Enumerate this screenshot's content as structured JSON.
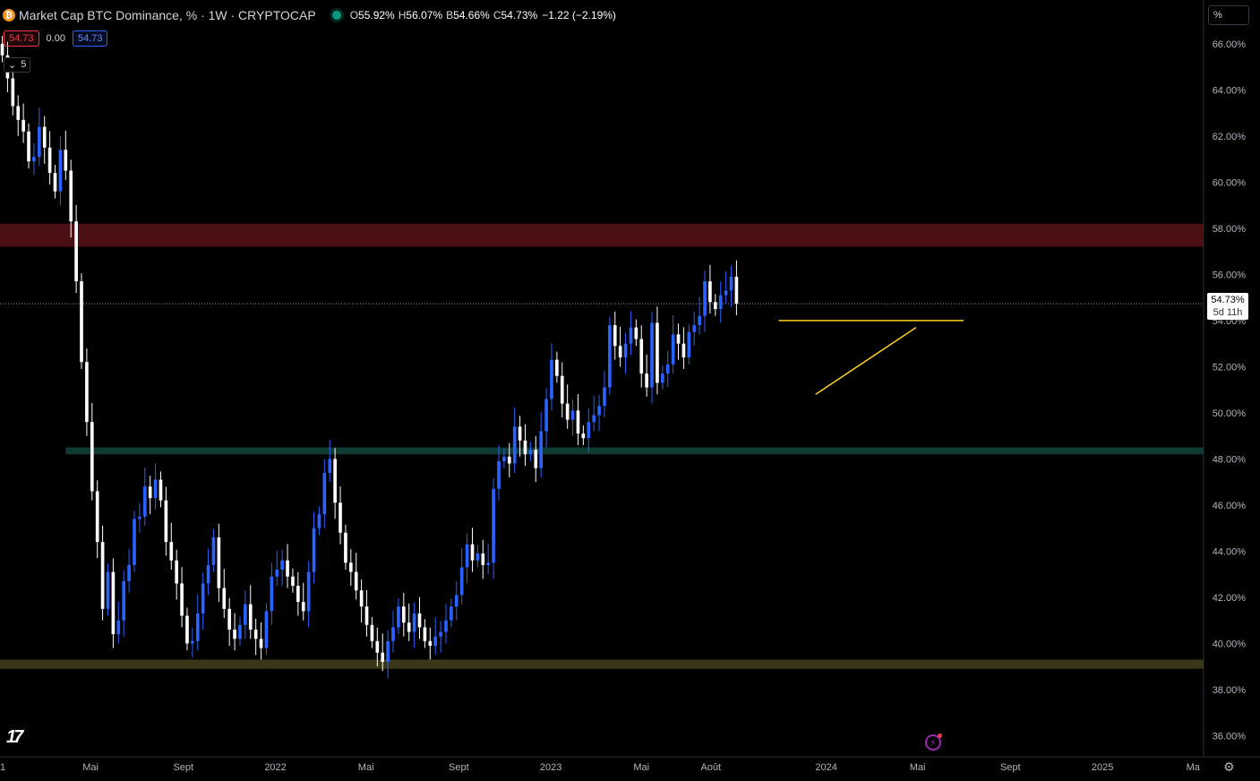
{
  "header": {
    "symbol_icon": "bitcoin-icon",
    "title": "Market Cap BTC Dominance, % · 1W · CRYPTOCAP",
    "ohlc": {
      "o_label": "O",
      "o": "55.92%",
      "h_label": "H",
      "h": "56.07%",
      "l_label": "B",
      "l": "54.66%",
      "c_label": "C",
      "c": "54.73%",
      "change": "−1.22 (−2.19%)"
    }
  },
  "trade": {
    "sell": "54.73",
    "spread": "0.00",
    "buy": "54.73"
  },
  "indicators": {
    "count": "5",
    "toggle_icon": "chevron-down-icon"
  },
  "scale_mode": "%",
  "last_price": {
    "value": "54.73%",
    "countdown": "5d 11h"
  },
  "colors": {
    "up": "#2962ff",
    "down": "#ffffff",
    "background": "#000000",
    "resistance_zone": "#4a1014",
    "support_zone": "#0e3b33",
    "floor_zone": "#3a3618",
    "trendline": "#ffd320"
  },
  "chart_data": {
    "type": "candlestick",
    "interval": "1W",
    "ylim": [
      35.2,
      67.2
    ],
    "y_ticks": [
      "66.00%",
      "64.00%",
      "62.00%",
      "60.00%",
      "58.00%",
      "56.00%",
      "54.00%",
      "52.00%",
      "50.00%",
      "48.00%",
      "46.00%",
      "44.00%",
      "42.00%",
      "40.00%",
      "38.00%",
      "36.00%"
    ],
    "y_tick_values": [
      66,
      64,
      62,
      60,
      58,
      56,
      54,
      52,
      50,
      48,
      46,
      44,
      42,
      40,
      38,
      36
    ],
    "x_ticks": [
      {
        "label": "1",
        "date": "2021-01-01"
      },
      {
        "label": "Mai",
        "date": "2021-05-01"
      },
      {
        "label": "Sept",
        "date": "2021-09-01"
      },
      {
        "label": "2022",
        "date": "2022-01-01"
      },
      {
        "label": "Mai",
        "date": "2022-05-01"
      },
      {
        "label": "Sept",
        "date": "2022-09-01"
      },
      {
        "label": "2023",
        "date": "2023-01-01"
      },
      {
        "label": "Mai",
        "date": "2023-05-01"
      },
      {
        "label": "Août",
        "date": "2023-08-01"
      },
      {
        "label": "2024",
        "date": "2024-01-01"
      },
      {
        "label": "Mai",
        "date": "2024-05-01"
      },
      {
        "label": "Sept",
        "date": "2024-09-01"
      },
      {
        "label": "2025",
        "date": "2025-01-01"
      },
      {
        "label": "Ma",
        "date": "2025-05-01"
      }
    ],
    "x_range": [
      "2021-01-01",
      "2025-05-15"
    ],
    "zones": [
      {
        "name": "resistance",
        "from": 57.2,
        "to": 58.2,
        "start": "2021-01-01"
      },
      {
        "name": "support",
        "from": 48.2,
        "to": 48.5,
        "start": "2021-03-29"
      },
      {
        "name": "floor",
        "from": 38.9,
        "to": 39.3,
        "start": "2021-01-01"
      }
    ],
    "trendlines": [
      {
        "name": "horizontal",
        "start": {
          "date": "2023-10-30",
          "value": 54.0
        },
        "end": {
          "date": "2024-07-01",
          "value": 54.0
        }
      },
      {
        "name": "ascending",
        "start": {
          "date": "2023-12-18",
          "value": 50.8
        },
        "end": {
          "date": "2024-04-29",
          "value": 53.7
        }
      }
    ],
    "last_value": 54.73,
    "weekly_close": [
      65.5,
      64.5,
      63.3,
      62.7,
      62.2,
      60.9,
      61.1,
      62.4,
      61.5,
      60.4,
      59.6,
      61.4,
      60.5,
      58.3,
      55.7,
      52.2,
      49.6,
      46.6,
      44.4,
      41.5,
      43.1,
      40.4,
      41.0,
      42.7,
      43.4,
      45.4,
      45.5,
      46.8,
      46.3,
      47.1,
      46.2,
      44.4,
      43.6,
      42.6,
      41.2,
      40.0,
      40.1,
      41.3,
      42.6,
      43.4,
      44.6,
      42.4,
      41.5,
      40.6,
      40.2,
      40.8,
      41.7,
      40.6,
      40.2,
      39.8,
      41.4,
      42.9,
      43.2,
      43.6,
      42.9,
      42.5,
      41.8,
      41.4,
      43.1,
      45.0,
      45.6,
      47.4,
      48.0,
      46.1,
      44.8,
      43.5,
      43.1,
      42.3,
      41.6,
      40.8,
      40.1,
      39.6,
      39.2,
      40.1,
      40.7,
      41.6,
      40.9,
      40.5,
      41.3,
      40.7,
      40.1,
      39.9,
      40.3,
      40.5,
      41.0,
      41.6,
      42.1,
      43.3,
      44.3,
      43.6,
      43.9,
      43.4,
      43.5,
      46.7,
      47.9,
      48.1,
      47.8,
      49.4,
      48.8,
      48.2,
      48.4,
      47.6,
      49.2,
      50.6,
      52.3,
      51.6,
      50.4,
      49.7,
      50.1,
      49.1,
      48.9,
      49.6,
      49.9,
      50.3,
      51.1,
      53.8,
      52.9,
      52.4,
      53.0,
      53.7,
      53.2,
      51.7,
      51.1,
      53.9,
      51.3,
      51.7,
      52.1,
      53.4,
      53.0,
      52.4,
      53.5,
      53.8,
      54.2,
      55.7,
      54.8,
      54.5,
      55.1,
      55.3,
      55.9,
      54.73
    ]
  }
}
